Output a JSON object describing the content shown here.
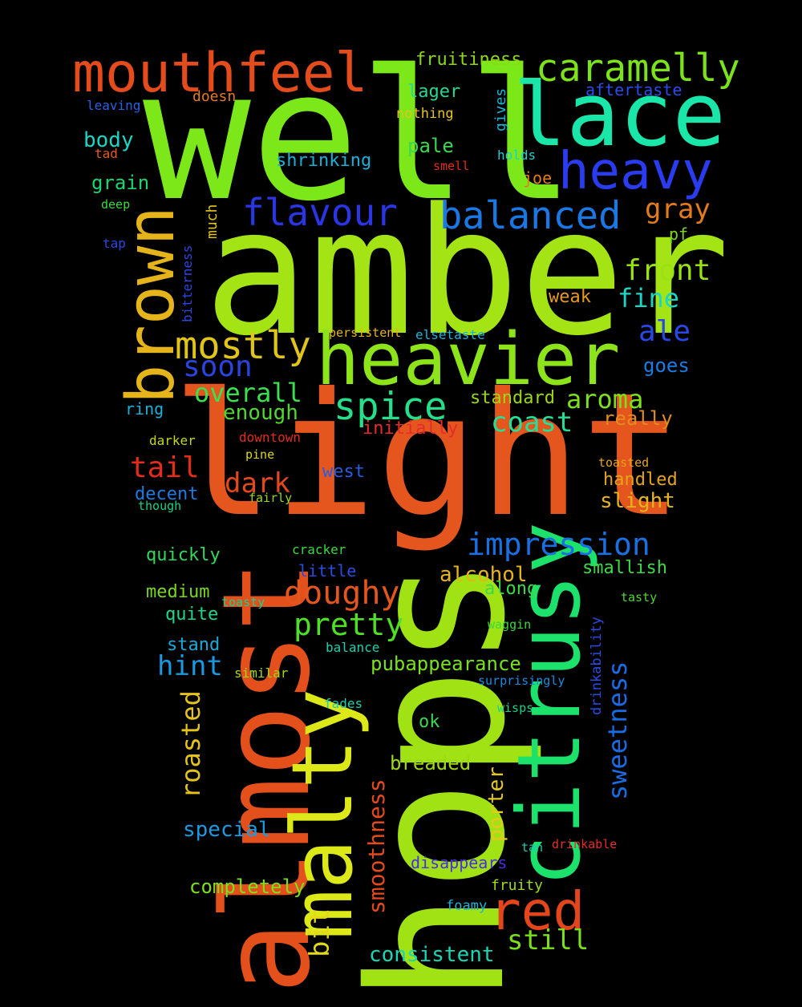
{
  "words": [
    {
      "text": "well",
      "color": "#7ce81a",
      "vertical": false
    },
    {
      "text": "amber",
      "color": "#a4e414",
      "vertical": false
    },
    {
      "text": "light",
      "color": "#e4561e",
      "vertical": false
    },
    {
      "text": "hops",
      "color": "#a0e214",
      "vertical": true
    },
    {
      "text": "almost",
      "color": "#e4501c",
      "vertical": true
    },
    {
      "text": "malty",
      "color": "#dce818",
      "vertical": true
    },
    {
      "text": "citrusy",
      "color": "#1ce26c",
      "vertical": true
    },
    {
      "text": "heavier",
      "color": "#8ee41a",
      "vertical": false
    },
    {
      "text": "lace",
      "color": "#1ae6aa",
      "vertical": false
    },
    {
      "text": "mouthfeel",
      "color": "#e44c1c",
      "vertical": false
    },
    {
      "text": "heavy",
      "color": "#2a3cf0",
      "vertical": false
    },
    {
      "text": "brown",
      "color": "#e4b41a",
      "vertical": true
    },
    {
      "text": "caramelly",
      "color": "#7ce21a",
      "vertical": false
    },
    {
      "text": "red",
      "color": "#e4461c",
      "vertical": false
    },
    {
      "text": "balanced",
      "color": "#1a78e4",
      "vertical": false
    },
    {
      "text": "flavour",
      "color": "#2a36e4",
      "vertical": false
    },
    {
      "text": "mostly",
      "color": "#e0c41a",
      "vertical": false
    },
    {
      "text": "spice",
      "color": "#24e08a",
      "vertical": false
    },
    {
      "text": "impression",
      "color": "#1a70e0",
      "vertical": false
    },
    {
      "text": "doughy",
      "color": "#e4561c",
      "vertical": false
    },
    {
      "text": "pretty",
      "color": "#4ee024",
      "vertical": false
    },
    {
      "text": "front",
      "color": "#9ae214",
      "vertical": false
    },
    {
      "text": "fine",
      "color": "#1ad6c4",
      "vertical": false
    },
    {
      "text": "ale",
      "color": "#2a48e8",
      "vertical": false
    },
    {
      "text": "gray",
      "color": "#e47c1c",
      "vertical": false
    },
    {
      "text": "soon",
      "color": "#2a44e0",
      "vertical": false
    },
    {
      "text": "overall",
      "color": "#3ae050",
      "vertical": false
    },
    {
      "text": "aroma",
      "color": "#7ce01a",
      "vertical": false
    },
    {
      "text": "coast",
      "color": "#24e096",
      "vertical": false
    },
    {
      "text": "tail",
      "color": "#e42c1c",
      "vertical": false
    },
    {
      "text": "dark",
      "color": "#e4481c",
      "vertical": false
    },
    {
      "text": "hint",
      "color": "#1a9ae0",
      "vertical": false
    },
    {
      "text": "still",
      "color": "#7ae01a",
      "vertical": false
    },
    {
      "text": "roasted",
      "color": "#e4c41a",
      "vertical": true
    },
    {
      "text": "sweetness",
      "color": "#1a6ce4",
      "vertical": true
    },
    {
      "text": "smoothness",
      "color": "#e44a1c",
      "vertical": true
    },
    {
      "text": "porter",
      "color": "#e4ca1a",
      "vertical": true
    },
    {
      "text": "bit",
      "color": "#e4d81a",
      "vertical": true
    },
    {
      "text": "consistent",
      "color": "#1ad6b4",
      "vertical": false
    },
    {
      "text": "completely",
      "color": "#7ce01a",
      "vertical": false
    },
    {
      "text": "special",
      "color": "#1a9ae0",
      "vertical": false
    },
    {
      "text": "breaded",
      "color": "#a0d814",
      "vertical": false
    },
    {
      "text": "pubappearance",
      "color": "#7ae01a",
      "vertical": false
    },
    {
      "text": "alcohol",
      "color": "#e4b41a",
      "vertical": false
    },
    {
      "text": "enough",
      "color": "#4ed830",
      "vertical": false
    },
    {
      "text": "standard",
      "color": "#9ad814",
      "vertical": false
    },
    {
      "text": "really",
      "color": "#e48c1c",
      "vertical": false
    },
    {
      "text": "slight",
      "color": "#e4b41a",
      "vertical": false
    },
    {
      "text": "handled",
      "color": "#e4a41a",
      "vertical": false
    },
    {
      "text": "along",
      "color": "#3ad84c",
      "vertical": false
    },
    {
      "text": "smallish",
      "color": "#3ed848",
      "vertical": false
    },
    {
      "text": "weak",
      "color": "#e49c1a",
      "vertical": false
    },
    {
      "text": "goes",
      "color": "#1a7ce4",
      "vertical": false
    },
    {
      "text": "body",
      "color": "#1ad6c4",
      "vertical": false
    },
    {
      "text": "grain",
      "color": "#1ad670",
      "vertical": false
    },
    {
      "text": "pale",
      "color": "#3ad850",
      "vertical": false
    },
    {
      "text": "lager",
      "color": "#24d894",
      "vertical": false
    },
    {
      "text": "fruitiness",
      "color": "#8ed814",
      "vertical": false
    },
    {
      "text": "shrinking",
      "color": "#1ab0d8",
      "vertical": false
    },
    {
      "text": "west",
      "color": "#2a5ce0",
      "vertical": false
    },
    {
      "text": "decent",
      "color": "#1a7ce0",
      "vertical": false
    },
    {
      "text": "quickly",
      "color": "#30d860",
      "vertical": false
    },
    {
      "text": "medium",
      "color": "#7ad81a",
      "vertical": false
    },
    {
      "text": "quite",
      "color": "#1ad88c",
      "vertical": false
    },
    {
      "text": "stand",
      "color": "#1aa8d8",
      "vertical": false
    },
    {
      "text": "initially",
      "color": "#e42c2c",
      "vertical": false
    },
    {
      "text": "little",
      "color": "#2a4ce0",
      "vertical": false
    },
    {
      "text": "disappears",
      "color": "#4a2ee0",
      "vertical": false
    },
    {
      "text": "ok",
      "color": "#3ad850",
      "vertical": false
    },
    {
      "text": "ring",
      "color": "#1ab0d8",
      "vertical": false
    },
    {
      "text": "aftertaste",
      "color": "#2a4ce8",
      "vertical": false
    },
    {
      "text": "joe",
      "color": "#e47c1c",
      "vertical": false
    },
    {
      "text": "pf",
      "color": "#7cd81a",
      "vertical": false
    },
    {
      "text": "fruity",
      "color": "#a0d814",
      "vertical": false
    },
    {
      "text": "foamy",
      "color": "#1ab4d8",
      "vertical": false
    },
    {
      "text": "gives",
      "color": "#1ab8d8",
      "vertical": true
    },
    {
      "text": "much",
      "color": "#e4c41a",
      "vertical": true
    },
    {
      "text": "bitterness",
      "color": "#2a48e0",
      "vertical": true
    },
    {
      "text": "drinkability",
      "color": "#2a4ce0",
      "vertical": true
    },
    {
      "text": "leaving",
      "color": "#2a60e0",
      "vertical": false
    },
    {
      "text": "doesn",
      "color": "#e47c1c",
      "vertical": false
    },
    {
      "text": "nothing",
      "color": "#e4c41a",
      "vertical": false
    },
    {
      "text": "tad",
      "color": "#e45c1c",
      "vertical": false
    },
    {
      "text": "holds",
      "color": "#1ad0d0",
      "vertical": false
    },
    {
      "text": "smell",
      "color": "#e42c1c",
      "vertical": false
    },
    {
      "text": "deep",
      "color": "#3ad83c",
      "vertical": false
    },
    {
      "text": "tap",
      "color": "#2a48e0",
      "vertical": false
    },
    {
      "text": "persistent",
      "color": "#e4b41a",
      "vertical": false
    },
    {
      "text": "elsetaste",
      "color": "#1ab4d8",
      "vertical": false
    },
    {
      "text": "darker",
      "color": "#c4d814",
      "vertical": false
    },
    {
      "text": "downtown",
      "color": "#e42c1c",
      "vertical": false
    },
    {
      "text": "pine",
      "color": "#dcd814",
      "vertical": false
    },
    {
      "text": "toasted",
      "color": "#e4a41a",
      "vertical": false
    },
    {
      "text": "though",
      "color": "#1ad08c",
      "vertical": false
    },
    {
      "text": "fairly",
      "color": "#9ad814",
      "vertical": false
    },
    {
      "text": "cracker",
      "color": "#3ad83c",
      "vertical": false
    },
    {
      "text": "toasty",
      "color": "#1ad08c",
      "vertical": false
    },
    {
      "text": "tasty",
      "color": "#4ed830",
      "vertical": false
    },
    {
      "text": "waggin",
      "color": "#3ad83c",
      "vertical": false
    },
    {
      "text": "balance",
      "color": "#1ad0b0",
      "vertical": false
    },
    {
      "text": "similar",
      "color": "#a4d814",
      "vertical": false
    },
    {
      "text": "surprisingly",
      "color": "#1a8ce0",
      "vertical": false
    },
    {
      "text": "fades",
      "color": "#1ad0b0",
      "vertical": false
    },
    {
      "text": "wisps",
      "color": "#1ad08c",
      "vertical": false
    },
    {
      "text": "tan",
      "color": "#1ad0b0",
      "vertical": false
    },
    {
      "text": "drinkable",
      "color": "#e42c2c",
      "vertical": false
    }
  ]
}
